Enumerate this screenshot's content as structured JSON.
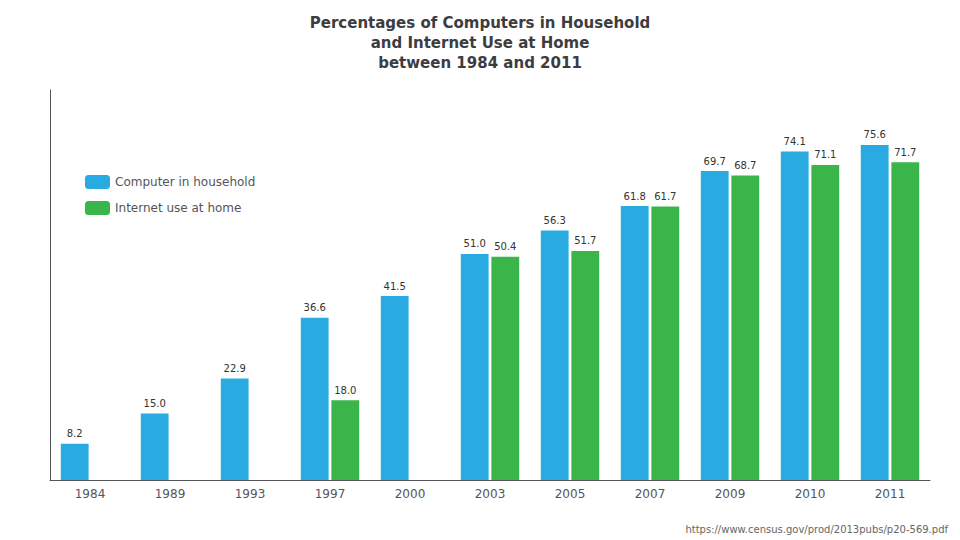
{
  "chart_data": {
    "type": "bar",
    "title": "Percentages of Computers in Household\nand Internet Use at Home\nbetween 1984 and 2011",
    "categories": [
      "1984",
      "1989",
      "1993",
      "1997",
      "2000",
      "2003",
      "2005",
      "2007",
      "2009",
      "2010",
      "2011"
    ],
    "series": [
      {
        "name": "Computer in household",
        "color": "#29ABE2",
        "values": [
          8.2,
          15.0,
          22.9,
          36.6,
          41.5,
          51.0,
          56.3,
          61.8,
          69.7,
          74.1,
          75.6
        ],
        "value_labels": [
          "8.2",
          "15.0",
          "22.9",
          "36.6",
          "41.5",
          "51.0",
          "56.3",
          "61.8",
          "69.7",
          "74.1",
          "75.6"
        ]
      },
      {
        "name": "Internet use at home",
        "color": "#39B54A",
        "values": [
          null,
          null,
          null,
          18.0,
          null,
          50.4,
          51.7,
          61.7,
          68.7,
          71.1,
          71.7
        ],
        "value_labels": [
          null,
          null,
          null,
          "18.0",
          null,
          "50.4",
          "51.7",
          "61.7",
          "68.7",
          "71.1",
          "71.7"
        ]
      }
    ],
    "ylim": [
      0,
      88
    ],
    "tick_labels": "x",
    "grid": false,
    "legend": "upper left",
    "data_labels": true,
    "annotations": [
      "https://www.census.gov/prod/2013pubs/p20-569.pdf"
    ]
  }
}
